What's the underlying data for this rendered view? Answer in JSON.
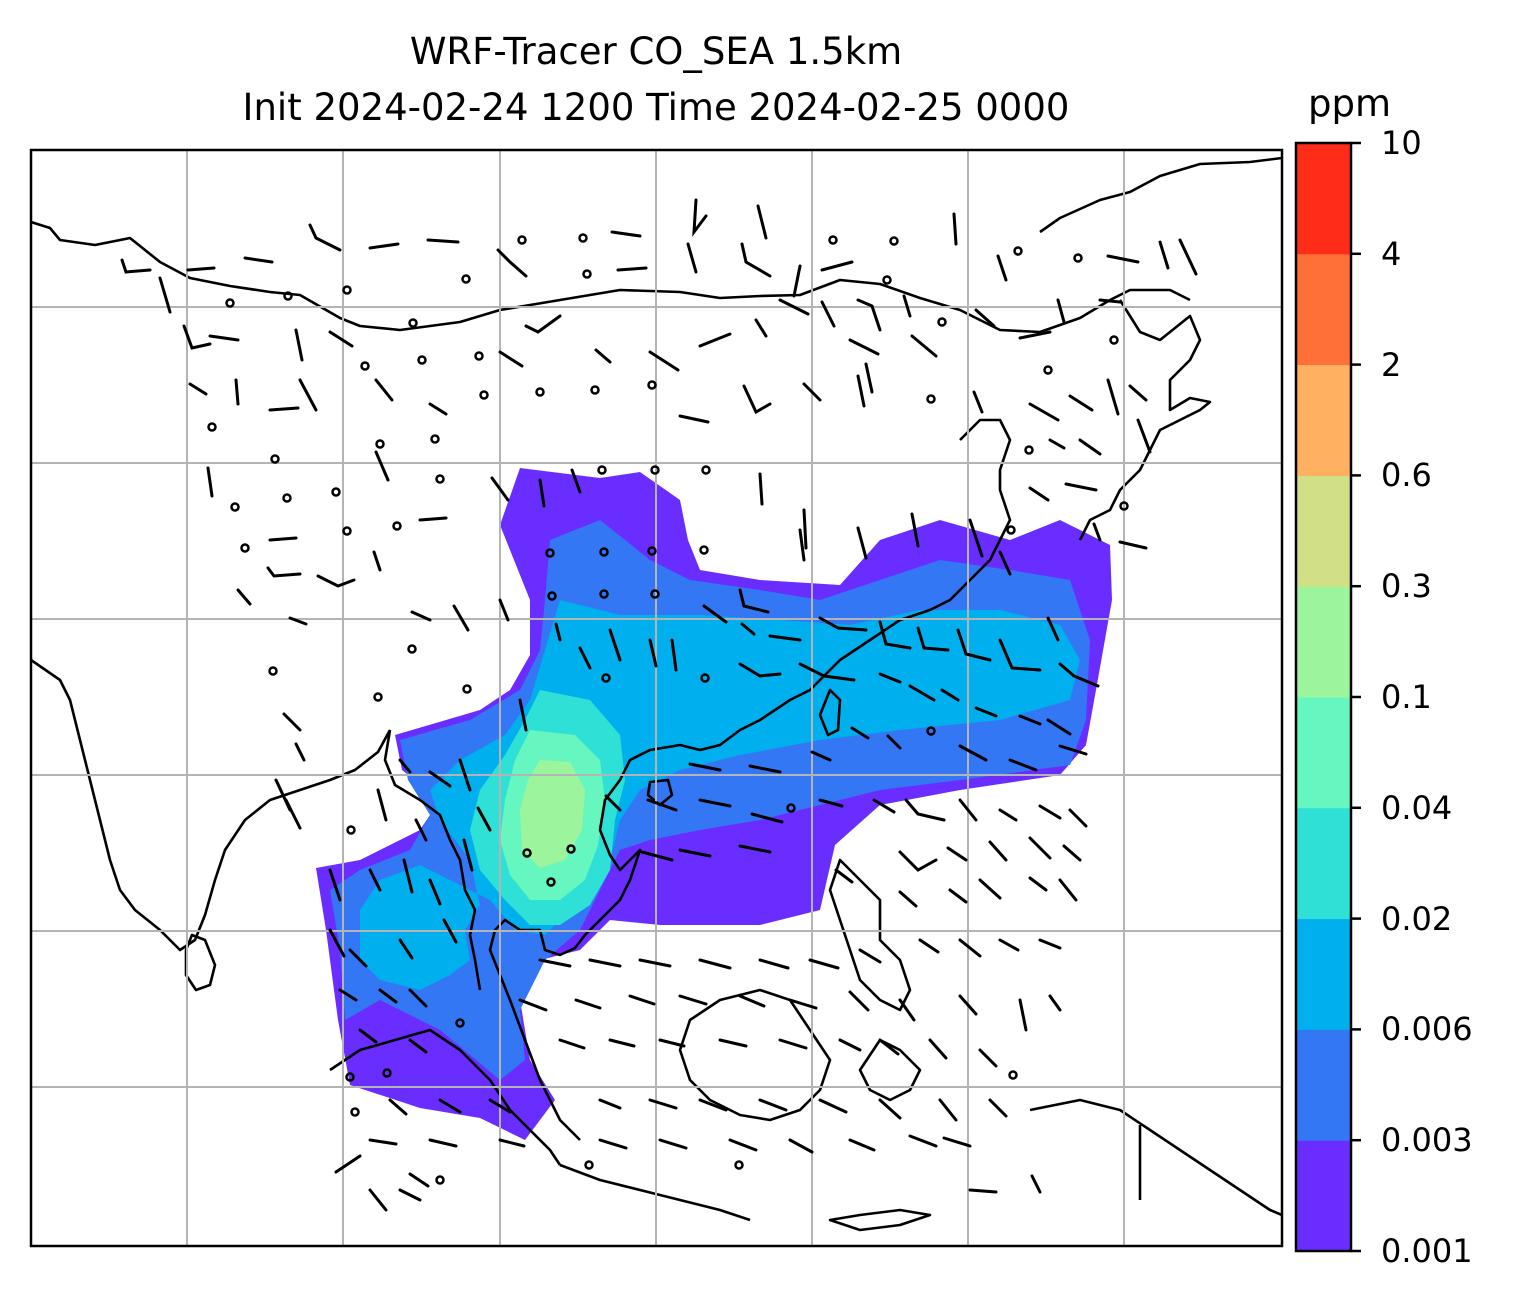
{
  "title_line1": "WRF-Tracer CO_SEA 1.5km",
  "title_line2": "Init 2024-02-24 1200 Time 2024-02-25 0000",
  "colorbar": {
    "unit": "ppm",
    "ticks": [
      "0.001",
      "0.003",
      "0.006",
      "0.02",
      "0.04",
      "0.1",
      "0.3",
      "0.6",
      "2",
      "4",
      "10"
    ],
    "colors": [
      "#6a2dff",
      "#3377f5",
      "#00b0ee",
      "#2ee0d6",
      "#66f6c0",
      "#9cf59c",
      "#d1e086",
      "#ffb060",
      "#ff7038",
      "#ff2c18"
    ]
  },
  "map": {
    "background": "#ffffff",
    "grid": "on",
    "grid_color": "#b4b4b4",
    "coastline_color": "#000000",
    "wind_barb_color": "#000000"
  }
}
